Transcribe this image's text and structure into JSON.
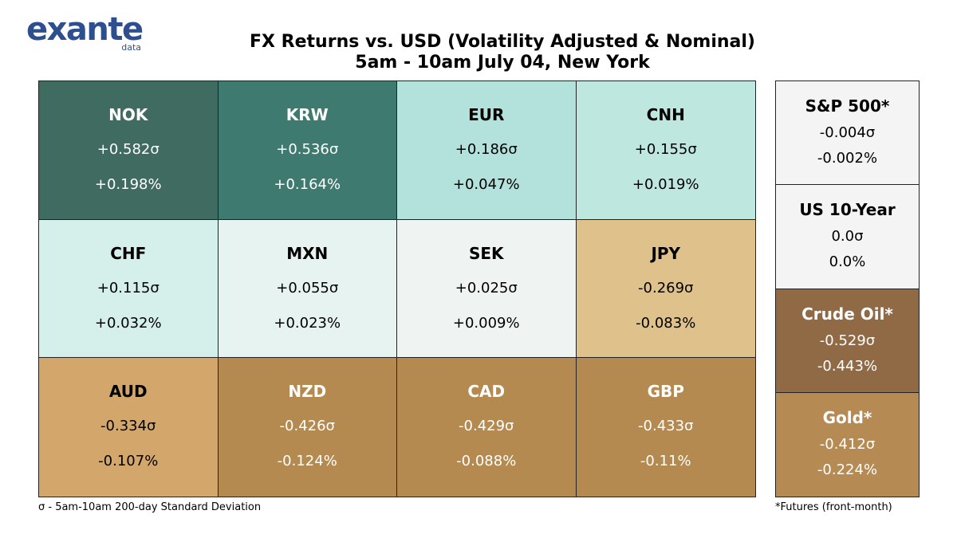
{
  "logo": {
    "word": "exante",
    "sub": "data"
  },
  "title_line1": "FX Returns vs. USD (Volatility Adjusted & Nominal)",
  "title_line2": "5am - 10am July 04, New York",
  "chart_data": {
    "type": "table",
    "title": "FX Returns vs. USD (Volatility Adjusted & Nominal)",
    "subtitle": "5am - 10am July 04, New York",
    "fx": [
      {
        "name": "NOK",
        "sigma": "+0.582σ",
        "pct": "+0.198%",
        "bg": "#3f6b60",
        "fg": "#ffffff"
      },
      {
        "name": "KRW",
        "sigma": "+0.536σ",
        "pct": "+0.164%",
        "bg": "#3f7a70",
        "fg": "#ffffff"
      },
      {
        "name": "EUR",
        "sigma": "+0.186σ",
        "pct": "+0.047%",
        "bg": "#b3e1db",
        "fg": "#000000"
      },
      {
        "name": "CNH",
        "sigma": "+0.155σ",
        "pct": "+0.019%",
        "bg": "#bee7e0",
        "fg": "#000000"
      },
      {
        "name": "CHF",
        "sigma": "+0.115σ",
        "pct": "+0.032%",
        "bg": "#d5efeb",
        "fg": "#000000"
      },
      {
        "name": "MXN",
        "sigma": "+0.055σ",
        "pct": "+0.023%",
        "bg": "#e7f3f1",
        "fg": "#000000"
      },
      {
        "name": "SEK",
        "sigma": "+0.025σ",
        "pct": "+0.009%",
        "bg": "#eff4f3",
        "fg": "#000000"
      },
      {
        "name": "JPY",
        "sigma": "-0.269σ",
        "pct": "-0.083%",
        "bg": "#dfc28b",
        "fg": "#000000"
      },
      {
        "name": "AUD",
        "sigma": "-0.334σ",
        "pct": "-0.107%",
        "bg": "#d3a76b",
        "fg": "#000000"
      },
      {
        "name": "NZD",
        "sigma": "-0.426σ",
        "pct": "-0.124%",
        "bg": "#b48a51",
        "fg": "#ffffff"
      },
      {
        "name": "CAD",
        "sigma": "-0.429σ",
        "pct": "-0.088%",
        "bg": "#b48a51",
        "fg": "#ffffff"
      },
      {
        "name": "GBP",
        "sigma": "-0.433σ",
        "pct": "-0.11%",
        "bg": "#b48a51",
        "fg": "#ffffff"
      }
    ],
    "other": [
      {
        "name": "S&P 500*",
        "sigma": "-0.004σ",
        "pct": "-0.002%",
        "bg": "#f4f4f4",
        "fg": "#000000"
      },
      {
        "name": "US 10-Year",
        "sigma": "0.0σ",
        "pct": "0.0%",
        "bg": "#f4f4f4",
        "fg": "#000000"
      },
      {
        "name": "Crude Oil*",
        "sigma": "-0.529σ",
        "pct": "-0.443%",
        "bg": "#8f6a45",
        "fg": "#ffffff"
      },
      {
        "name": "Gold*",
        "sigma": "-0.412σ",
        "pct": "-0.224%",
        "bg": "#b58a53",
        "fg": "#ffffff"
      }
    ]
  },
  "footnote_left": "σ - 5am-10am 200-day Standard Deviation",
  "footnote_right": "*Futures (front-month)"
}
